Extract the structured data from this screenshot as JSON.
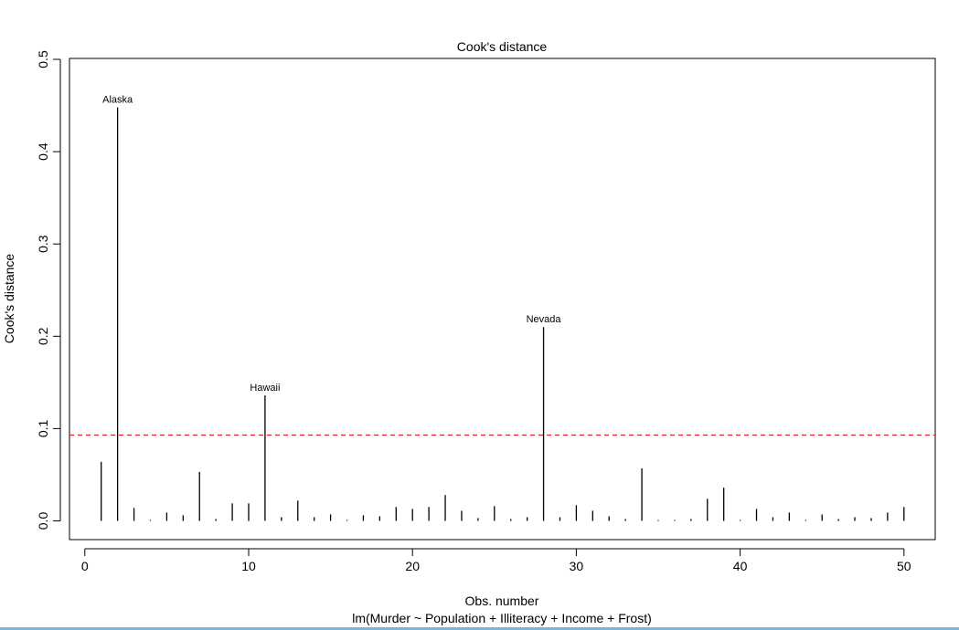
{
  "chart_data": {
    "type": "bar",
    "title": "Cook's distance",
    "xlabel": "Obs. number",
    "subtitle": "lm(Murder ~ Population + Illiteracy + Income + Frost)",
    "ylabel": "Cook's distance",
    "xlim": [
      0,
      52
    ],
    "ylim": [
      0,
      0.5
    ],
    "xticks": [
      "0",
      "10",
      "20",
      "30",
      "40",
      "50"
    ],
    "xtick_values": [
      0,
      10,
      20,
      30,
      40,
      50
    ],
    "yticks": [
      "0.0",
      "0.1",
      "0.2",
      "0.3",
      "0.4",
      "0.5"
    ],
    "ytick_values": [
      0,
      0.1,
      0.2,
      0.3,
      0.4,
      0.5
    ],
    "threshold": 0.093,
    "threshold_color": "#d62728",
    "grid": false,
    "x": [
      1,
      2,
      3,
      4,
      5,
      6,
      7,
      8,
      9,
      10,
      11,
      12,
      13,
      14,
      15,
      16,
      17,
      18,
      19,
      20,
      21,
      22,
      23,
      24,
      25,
      26,
      27,
      28,
      29,
      30,
      31,
      32,
      33,
      34,
      35,
      36,
      37,
      38,
      39,
      40,
      41,
      42,
      43,
      44,
      45,
      46,
      47,
      48,
      49,
      50
    ],
    "values": [
      0.064,
      0.448,
      0.014,
      0.001,
      0.009,
      0.006,
      0.053,
      0.002,
      0.019,
      0.019,
      0.136,
      0.004,
      0.022,
      0.004,
      0.007,
      0.001,
      0.006,
      0.005,
      0.015,
      0.013,
      0.015,
      0.028,
      0.011,
      0.003,
      0.016,
      0.002,
      0.004,
      0.21,
      0.004,
      0.017,
      0.011,
      0.005,
      0.002,
      0.057,
      0.001,
      0.001,
      0.002,
      0.024,
      0.036,
      0.001,
      0.013,
      0.004,
      0.009,
      0.001,
      0.007,
      0.002,
      0.004,
      0.003,
      0.009,
      0.015
    ],
    "annotations": [
      {
        "x": 2,
        "label": "Alaska"
      },
      {
        "x": 11,
        "label": "Hawaii"
      },
      {
        "x": 28,
        "label": "Nevada"
      }
    ]
  }
}
